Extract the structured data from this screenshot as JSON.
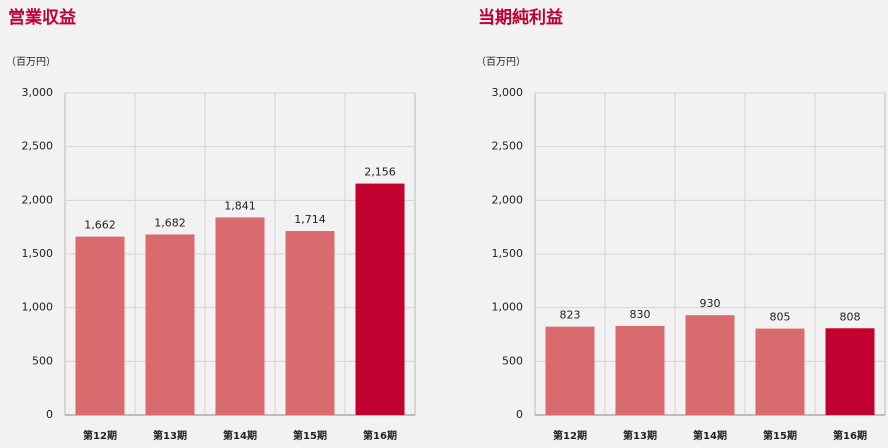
{
  "chart_data": [
    {
      "type": "bar",
      "title": "営業収益",
      "unit": "（百万円）",
      "categories": [
        "第12期",
        "第13期",
        "第14期",
        "第15期",
        "第16期"
      ],
      "values": [
        1662,
        1682,
        1841,
        1714,
        2156
      ],
      "value_labels": [
        "1,662",
        "1,682",
        "1,841",
        "1,714",
        "2,156"
      ],
      "colors": [
        "#d96b6f",
        "#d96b6f",
        "#d96b6f",
        "#d96b6f",
        "#c2002f"
      ],
      "ylim": [
        0,
        3000
      ],
      "yticks": [
        0,
        500,
        {
          "value": 1000,
          "label": "1,000"
        },
        {
          "value": 1500,
          "label": "1,500"
        },
        {
          "value": 2000,
          "label": "2,000"
        },
        {
          "value": 2500,
          "label": "2,500"
        },
        {
          "value": 3000,
          "label": "3,000"
        }
      ],
      "grid": true
    },
    {
      "type": "bar",
      "title": "当期純利益",
      "unit": "（百万円）",
      "categories": [
        "第12期",
        "第13期",
        "第14期",
        "第15期",
        "第16期"
      ],
      "values": [
        823,
        830,
        930,
        805,
        808
      ],
      "colors": [
        "#d96b6f",
        "#d96b6f",
        "#d96b6f",
        "#d96b6f",
        "#c2002f"
      ],
      "ylim": [
        0,
        3000
      ],
      "yticks": [
        0,
        500,
        {
          "value": 1000,
          "label": "1,000"
        },
        {
          "value": 1500,
          "label": "1,500"
        },
        {
          "value": 2000,
          "label": "2,000"
        },
        {
          "value": 2500,
          "label": "2,500"
        },
        {
          "value": 3000,
          "label": "3,000"
        }
      ],
      "grid": true
    }
  ]
}
